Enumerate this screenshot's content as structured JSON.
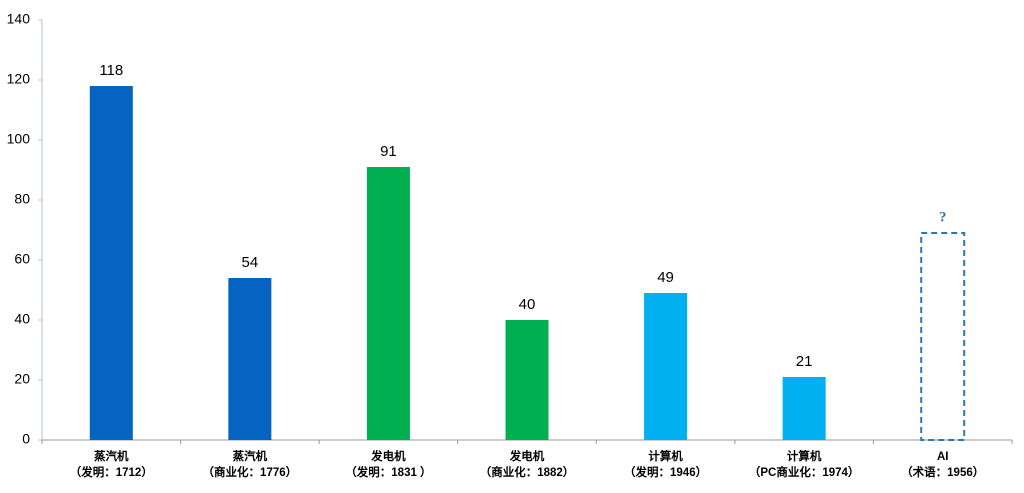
{
  "chart_data": {
    "type": "bar",
    "categories": [
      [
        "蒸汽机",
        "（发明：1712）"
      ],
      [
        "蒸汽机",
        "（商业化：1776）"
      ],
      [
        "发电机",
        "（发明：1831 ）"
      ],
      [
        "发电机",
        "（商业化：1882）"
      ],
      [
        "计算机",
        "（发明：1946）"
      ],
      [
        "计算机",
        "（PC商业化：1974）"
      ],
      [
        "AI",
        "（术语：1956）"
      ]
    ],
    "values": [
      118,
      54,
      91,
      40,
      49,
      21,
      69
    ],
    "value_labels": [
      "118",
      "54",
      "91",
      "40",
      "49",
      "21",
      "?"
    ],
    "colors": [
      "#0563c1",
      "#0563c1",
      "#00b050",
      "#00b050",
      "#00b0f0",
      "#00b0f0",
      "#2e75b6"
    ],
    "bar_styles": [
      "solid",
      "solid",
      "solid",
      "solid",
      "solid",
      "solid",
      "dashed"
    ],
    "ylim": [
      0,
      140
    ],
    "yticks": [
      0,
      20,
      40,
      60,
      80,
      100,
      120,
      140
    ]
  }
}
